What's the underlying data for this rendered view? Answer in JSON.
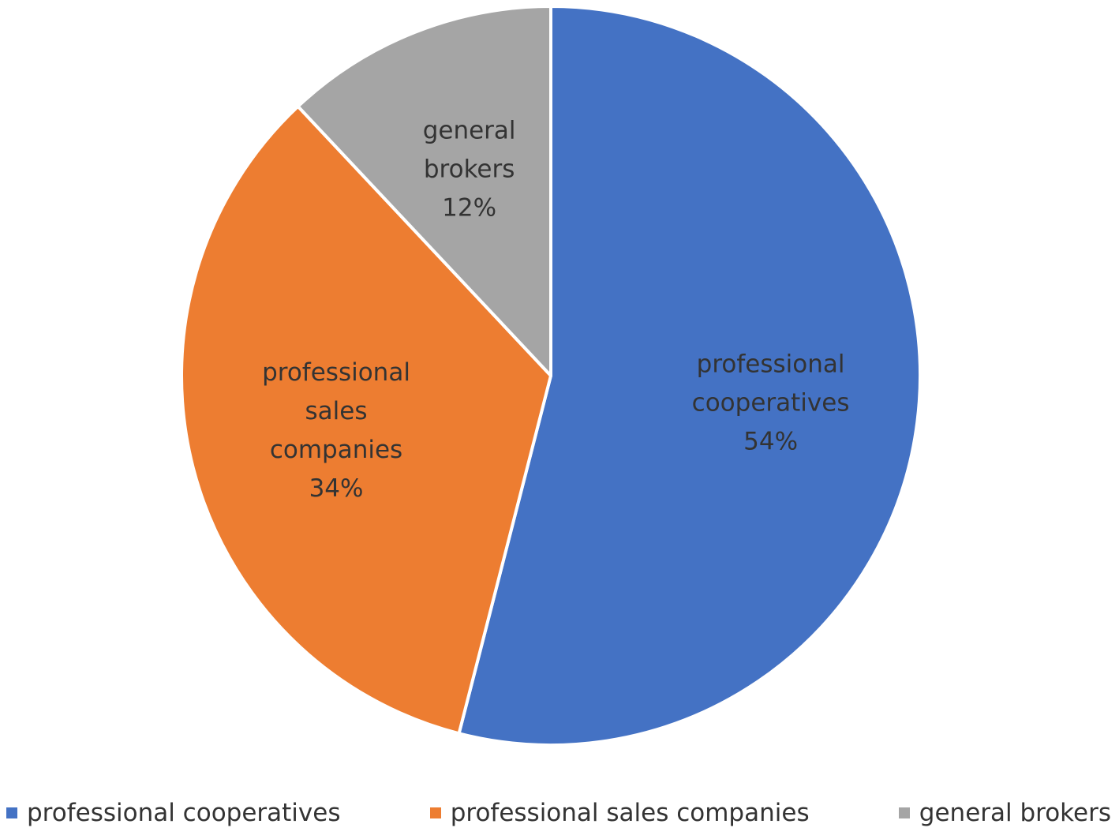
{
  "chart_data": {
    "type": "pie",
    "categories": [
      "professional cooperatives",
      "professional sales companies",
      "general brokers"
    ],
    "values": [
      54,
      34,
      12
    ],
    "value_labels": [
      "54%",
      "34%",
      "12%"
    ],
    "colors": [
      "#4472c4",
      "#ed7d31",
      "#a5a5a5"
    ],
    "legend": "bottom"
  }
}
